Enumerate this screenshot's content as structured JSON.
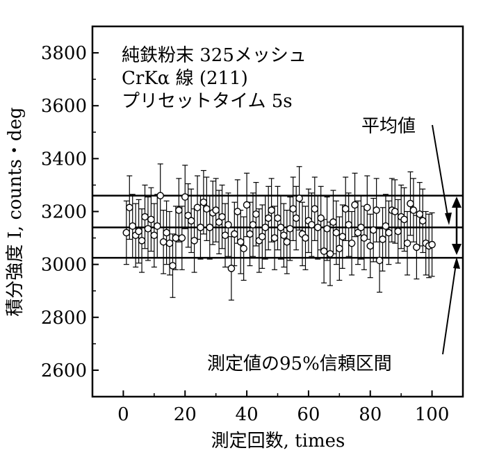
{
  "chart_data": {
    "type": "scatter",
    "title": "",
    "xlabel": "測定回数, times",
    "ylabel": "積分強度 I, counts・deg",
    "xlim": [
      -10,
      110
    ],
    "ylim": [
      2500,
      3900
    ],
    "xticks": [
      "0",
      "20",
      "40",
      "60",
      "80",
      "100"
    ],
    "yticks": [
      "2600",
      "2800",
      "3000",
      "3200",
      "3400",
      "3600",
      "3800"
    ],
    "mean": 3140,
    "ci95_lower": 3025,
    "ci95_upper": 3260,
    "error_bar_halfwidth": 120,
    "annotation_lines": [
      "純鉄粉末 325メッシュ",
      "CrKα 線  (211)",
      "プリセットタイム 5s"
    ],
    "label_mean": "平均値",
    "label_ci": "測定値の95%信頼区間",
    "points": [
      [
        1,
        3120
      ],
      [
        2,
        3215
      ],
      [
        3,
        3145
      ],
      [
        4,
        3110
      ],
      [
        5,
        3125
      ],
      [
        6,
        3090
      ],
      [
        7,
        3180
      ],
      [
        8,
        3135
      ],
      [
        9,
        3170
      ],
      [
        10,
        3110
      ],
      [
        11,
        3145
      ],
      [
        12,
        3260
      ],
      [
        13,
        3085
      ],
      [
        14,
        3120
      ],
      [
        15,
        3080
      ],
      [
        16,
        2995
      ],
      [
        17,
        3100
      ],
      [
        18,
        3205
      ],
      [
        19,
        3100
      ],
      [
        20,
        3255
      ],
      [
        21,
        3185
      ],
      [
        22,
        3165
      ],
      [
        23,
        3090
      ],
      [
        24,
        3215
      ],
      [
        25,
        3140
      ],
      [
        26,
        3235
      ],
      [
        27,
        3210
      ],
      [
        28,
        3140
      ],
      [
        29,
        3195
      ],
      [
        30,
        3205
      ],
      [
        31,
        3160
      ],
      [
        32,
        3180
      ],
      [
        33,
        3110
      ],
      [
        34,
        3150
      ],
      [
        35,
        2985
      ],
      [
        36,
        3115
      ],
      [
        37,
        3200
      ],
      [
        38,
        3085
      ],
      [
        39,
        3060
      ],
      [
        40,
        3225
      ],
      [
        41,
        3115
      ],
      [
        42,
        3150
      ],
      [
        43,
        3190
      ],
      [
        44,
        3090
      ],
      [
        45,
        3105
      ],
      [
        46,
        3140
      ],
      [
        47,
        3175
      ],
      [
        48,
        3205
      ],
      [
        49,
        3100
      ],
      [
        50,
        3175
      ],
      [
        51,
        3140
      ],
      [
        52,
        3110
      ],
      [
        53,
        3085
      ],
      [
        54,
        3135
      ],
      [
        55,
        3210
      ],
      [
        56,
        3175
      ],
      [
        57,
        3250
      ],
      [
        58,
        3115
      ],
      [
        59,
        3100
      ],
      [
        60,
        3165
      ],
      [
        61,
        3150
      ],
      [
        62,
        3210
      ],
      [
        63,
        3140
      ],
      [
        64,
        3175
      ],
      [
        65,
        3050
      ],
      [
        66,
        3135
      ],
      [
        67,
        3040
      ],
      [
        68,
        3160
      ],
      [
        69,
        3120
      ],
      [
        70,
        3060
      ],
      [
        71,
        3105
      ],
      [
        72,
        3210
      ],
      [
        73,
        3150
      ],
      [
        74,
        3080
      ],
      [
        75,
        3225
      ],
      [
        76,
        3120
      ],
      [
        77,
        3140
      ],
      [
        78,
        3100
      ],
      [
        79,
        3215
      ],
      [
        80,
        3070
      ],
      [
        81,
        3130
      ],
      [
        82,
        3205
      ],
      [
        83,
        3015
      ],
      [
        84,
        3095
      ],
      [
        85,
        3145
      ],
      [
        86,
        3120
      ],
      [
        87,
        3205
      ],
      [
        88,
        3200
      ],
      [
        89,
        3125
      ],
      [
        90,
        3180
      ],
      [
        91,
        3170
      ],
      [
        92,
        3080
      ],
      [
        93,
        3230
      ],
      [
        94,
        3205
      ],
      [
        95,
        3065
      ],
      [
        96,
        3190
      ],
      [
        97,
        3165
      ],
      [
        98,
        3080
      ],
      [
        99,
        3070
      ],
      [
        100,
        3075
      ]
    ]
  }
}
